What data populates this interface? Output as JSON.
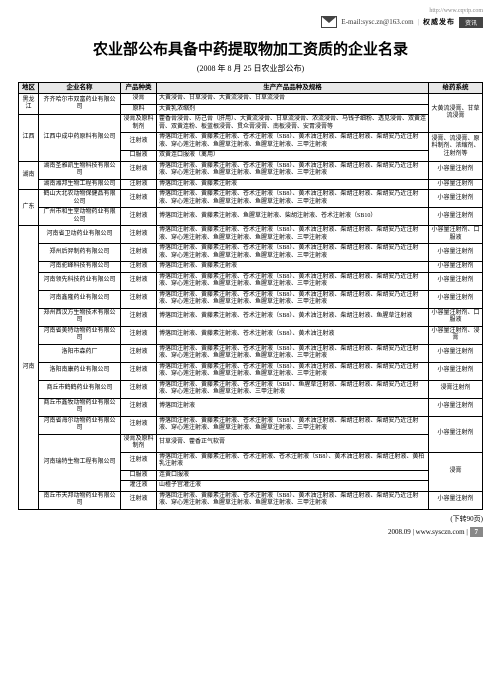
{
  "header": {
    "top_url": "http://www.cqvip.com",
    "email": "E-mail:sysc.zn@163.com",
    "brand_label": "权威发布",
    "brand_box": "资讯"
  },
  "title": "农业部公布具备中药提取物加工资质的企业名录",
  "subtitle": "(2008 年 8 月 25 日农业部公布)",
  "columns": {
    "region": "地区",
    "company": "企业名称",
    "type": "产品种类",
    "products": "生产产品品种及规格",
    "route": "给药系统"
  },
  "rows": [
    {
      "region": "黑龙江",
      "company": "齐齐哈尔市双富药业有限公司",
      "type": "浸膏",
      "products": "大黄浸膏、甘草浸膏、大黄流浸膏、甘草流浸膏",
      "route": "大黄流浸膏、甘草流浸膏"
    },
    {
      "region": "",
      "company": "",
      "type": "原料",
      "products": "大黄乳浓缩剂",
      "route": ""
    },
    {
      "region": "江西",
      "company": "江西中成中药原料有限公司",
      "type": "浸膏及原料制剂",
      "products": "藿香膏浸膏、防己膏（肝用）、大黄流浸膏、甘草流浸膏、浓流浸膏、马钱子细粉、透见浸膏、双黄连膏、双黄连粉、板蓝根浸膏、贯众膏浸膏、南板浸膏、安胃浸膏等",
      "route": ""
    },
    {
      "region": "",
      "company": "",
      "type": "注射液",
      "products": "博落回注射液、黄藤素注射液、苍术注射液（SB8）、黄术油注射液、柴胡注射液、柴胡安乃近注射液、穿心莲注射液、鱼腥草注射液、鱼腥草注射液、三甲注射液",
      "route": "浸膏、流浸膏、原料制剂、浓缩剂、注射剂等"
    },
    {
      "region": "",
      "company": "",
      "type": "口服液",
      "products": "双黄连口服液（禽用）",
      "route": ""
    },
    {
      "region": "湖南",
      "company": "湖南圣雅凯生物科技有限公司",
      "type": "注射液",
      "products": "博落回注射液、黄藤素注射液、苍术注射液（SB8）、黄术油注射液、柴胡注射液、柴胡安乃近注射液、穿心莲注射液、鱼腥草注射液、鱼腥草注射液、三甲注射液",
      "route": "小容量注射剂"
    },
    {
      "region": "",
      "company": "湖南湘邦生物工程有限公司",
      "type": "注射液",
      "products": "博落回注射液、黄藤素注射液",
      "route": "小容量注射剂"
    },
    {
      "region": "广东",
      "company": "鹤山大北农动物保健品有限公司",
      "type": "注射液",
      "products": "博落回注射液、黄藤素注射液、苍术注射液（SB8）、黄术油注射液、柴胡注射液、柴胡安乃近注射液、穿心莲注射液、鱼腥草注射液、鱼腥草注射液、三甲注射液",
      "route": "小容量注射剂"
    },
    {
      "region": "",
      "company": "广州市和生堂动物药业有限公司",
      "type": "注射液",
      "products": "博落回注射液、黄藤素注射液、鱼腥草注射液、柴胡注射液、苍术注射液（SB10）",
      "route": "小容量注射剂"
    },
    {
      "region": "河南",
      "company": "河南省卫动药业有限公司",
      "type": "注射液",
      "products": "博落回注射液、黄藤素注射液、苍术注射液（SB8）、黄术油注射液、柴胡注射液、柴胡安乃近注射液、穿心莲注射液、鱼腥草注射液、鱼腥草注射液、三甲注射液",
      "route": "小容量注射剂、口服液"
    },
    {
      "region": "",
      "company": "郑州后羿制药有限公司",
      "type": "注射液",
      "products": "博落回注射液、黄藤素注射液、苍术注射液（SB8）、黄术油注射液、柴胡注射液、柴胡安乃近注射液、穿心莲注射液、鱼腥草注射液、鱼腥草注射液、三甲注射液",
      "route": "小容量注射剂"
    },
    {
      "region": "",
      "company": "河南驼峰科技有限公司",
      "type": "注射液",
      "products": "博落回注射液、黄藤素注射液",
      "route": "小容量注射剂"
    },
    {
      "region": "",
      "company": "河南领先科技药业有限公司",
      "type": "注射液",
      "products": "博落回注射液、黄藤素注射液、苍术注射液（SB8）、黄术油注射液、柴胡注射液、柴胡安乃近注射液、穿心莲注射液、鱼腥草注射液、鱼腥草注射液、三甲注射液",
      "route": "小容量注射剂"
    },
    {
      "region": "",
      "company": "河南鑫隆药业有限公司",
      "type": "注射液",
      "products": "博落回注射液、黄藤素注射液、苍术注射液（SB8）、黄术油注射液、柴胡注射液、柴胡安乃近注射液、穿心莲注射液、鱼腥草注射液、鱼腥草注射液、三甲注射液",
      "route": "小容量注射剂"
    },
    {
      "region": "",
      "company": "郑州西汉方生物技术有限公司",
      "type": "注射液",
      "products": "博落回注射液、黄藤素注射液、苍术注射液（SB8）、黄术油注射液、柴胡注射液、鱼腥草注射液",
      "route": "小容量注射剂、口服液"
    },
    {
      "region": "",
      "company": "河南省美特动物药业有限公司",
      "type": "注射液",
      "products": "博落回注射液、黄藤素注射液、苍术注射液（SB8）、黄术油注射液",
      "route": "小容量注射剂、浸膏"
    },
    {
      "region": "",
      "company": "洛阳市森药厂",
      "type": "注射液",
      "products": "博落回注射液、黄藤素注射液、苍术注射液（SB8）、黄术油注射液、柴胡注射液、柴胡安乃近注射液、穿心莲注射液、鱼腥草注射液、鱼腥草注射液、三甲注射液",
      "route": "小容量注射剂"
    },
    {
      "region": "",
      "company": "洛阳南康药业有限公司",
      "type": "注射液",
      "products": "博落回注射液、黄藤素注射液、苍术注射液（SB8）、黄术油注射液、柴胡注射液、柴胡安乃近注射液、穿心莲注射液、鱼腥草注射液、鱼腥草注射液、三甲注射液",
      "route": "小容量注射剂"
    },
    {
      "region": "",
      "company": "商丘市鹤鹤药业有限公司",
      "type": "注射液",
      "products": "博落回注射液、黄藤素注射液、苍术注射液（SB8）、鱼腥草注射液、柴胡注射液、柴胡安乃近注射液、穿心莲注射液、鱼腥草注射液、三甲注射液",
      "route": "浸膏注射剂"
    },
    {
      "region": "",
      "company": "商丘市鑫牧动物药业有限公司",
      "type": "注射液",
      "products": "博落回注射液",
      "route": "小容量注射剂"
    },
    {
      "region": "",
      "company": "河南省海尔动物药业有限公司",
      "type": "注射液",
      "products": "博落回注射液、黄藤素注射液、苍术注射液（SB8）、黄术油注射液、柴胡注射液、柴胡安乃近注射液、穿心莲注射液、鱼腥草注射液、鱼腥草注射液、三甲注射液",
      "route": "小容量注射剂"
    },
    {
      "region": "",
      "company": "河南瑞特生物工程有限公司",
      "type": "浸膏及原料制剂",
      "products": "甘草浸膏、藿香正气软膏",
      "route": ""
    },
    {
      "region": "",
      "company": "",
      "type": "注射液",
      "products": "博落回注射液、黄藤素注射液、苍术注射液、苍术注射液（SB8）、黄术油注射液、柴胡注射液、黄柏乳注射液",
      "route": "浸膏"
    },
    {
      "region": "",
      "company": "",
      "type": "口服液",
      "products": "连黄口服液",
      "route": ""
    },
    {
      "region": "",
      "company": "",
      "type": "灌注液",
      "products": "山楂子宫灌注液",
      "route": ""
    },
    {
      "region": "",
      "company": "南丘市天邦动物药业有限公司",
      "type": "注射液",
      "products": "博落回注射液、黄藤素注射液、苍术注射液（SB8）、黄术油注射液、柴胡注射液、柴胡安乃近注射液、穿心莲注射液、鱼腥草注射液、鱼腥草注射液、三甲注射液",
      "route": "小容量注射剂"
    }
  ],
  "footer": {
    "note": "(下转90页)",
    "date": "2008.09",
    "site": "www.sysczn.com",
    "page": "7"
  }
}
